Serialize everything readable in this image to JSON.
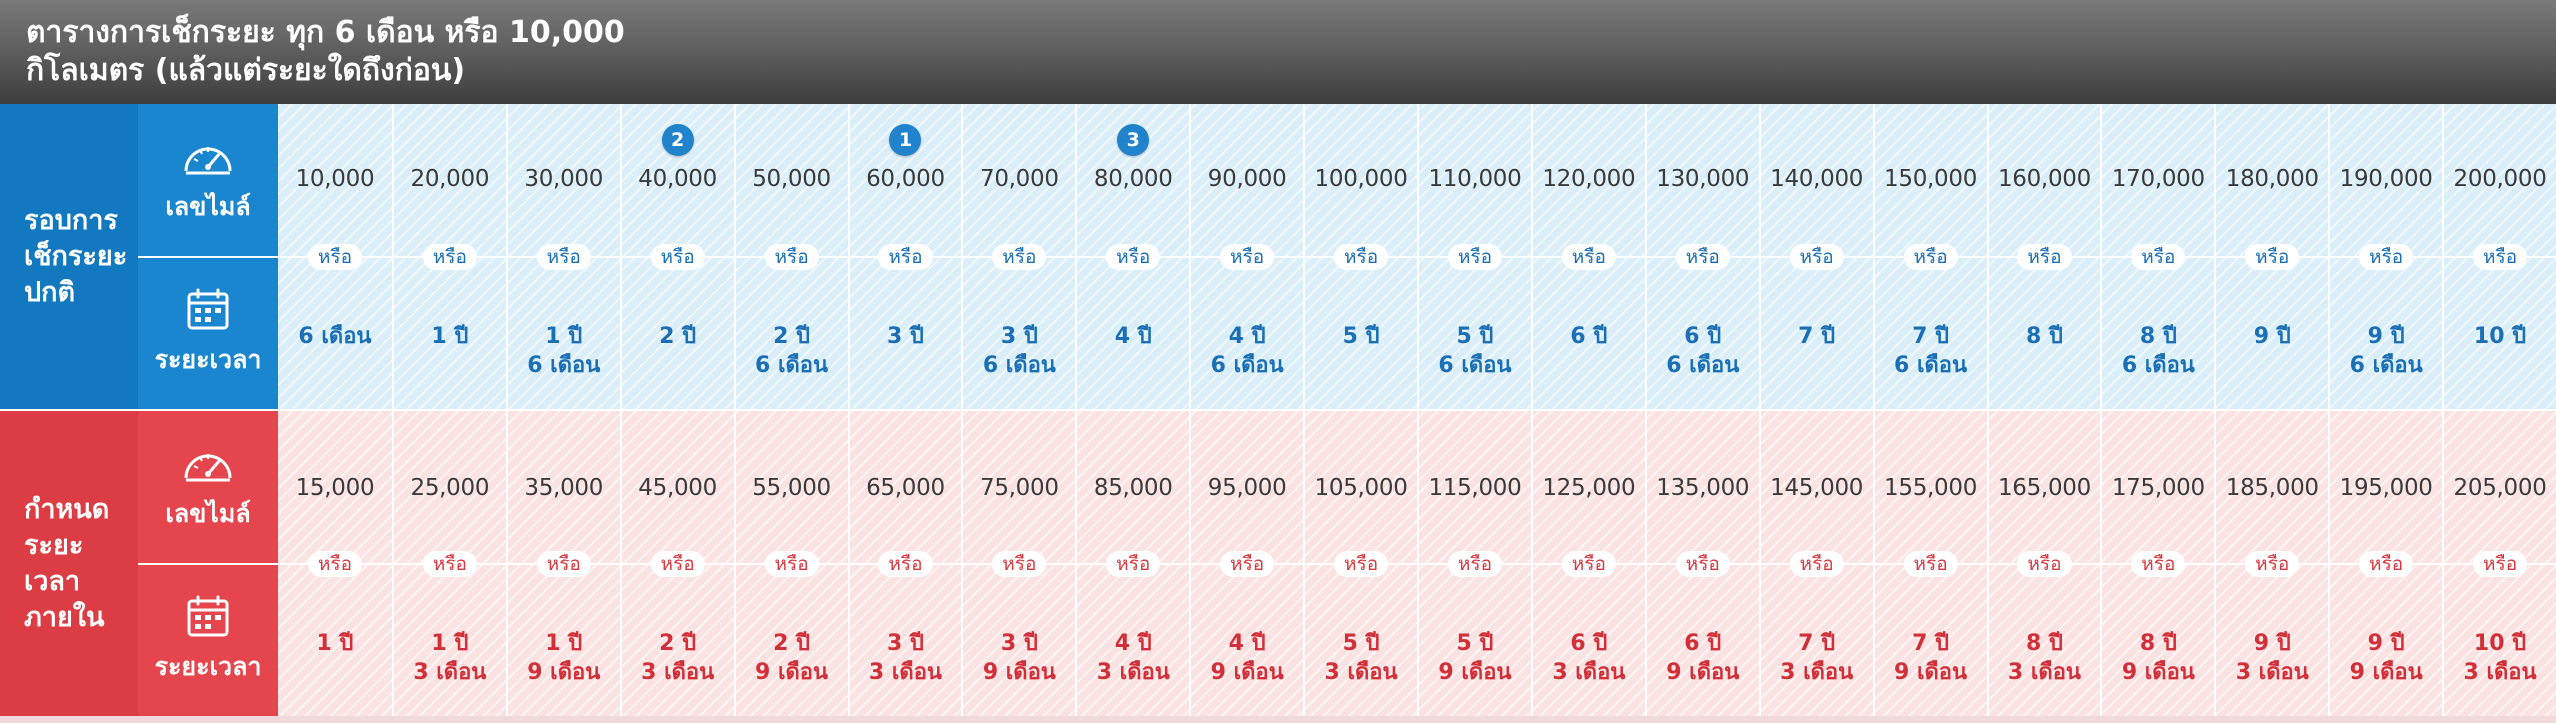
{
  "header": {
    "line1": "ตารางการเช็กระยะ ทุก 6 เดือน หรือ 10,000",
    "line2": "กิโลเมตร (แล้วแต่ระยะใดถึงก่อน)"
  },
  "sub_labels": {
    "mileage": "เลขไมล์",
    "time": "ระยะเวลา"
  },
  "or_label": "หรือ",
  "sections": [
    {
      "id": "normal",
      "label_lines": [
        "รอบการ",
        "เช็กระยะ",
        "ปกติ"
      ],
      "color": "#1278c0",
      "columns": [
        {
          "mileage": "10,000",
          "time": [
            "6 เดือน"
          ],
          "badge": ""
        },
        {
          "mileage": "20,000",
          "time": [
            "1 ปี"
          ],
          "badge": ""
        },
        {
          "mileage": "30,000",
          "time": [
            "1 ปี",
            "6 เดือน"
          ],
          "badge": ""
        },
        {
          "mileage": "40,000",
          "time": [
            "2 ปี"
          ],
          "badge": "2"
        },
        {
          "mileage": "50,000",
          "time": [
            "2 ปี",
            "6 เดือน"
          ],
          "badge": ""
        },
        {
          "mileage": "60,000",
          "time": [
            "3 ปี"
          ],
          "badge": "1"
        },
        {
          "mileage": "70,000",
          "time": [
            "3 ปี",
            "6 เดือน"
          ],
          "badge": ""
        },
        {
          "mileage": "80,000",
          "time": [
            "4 ปี"
          ],
          "badge": "3"
        },
        {
          "mileage": "90,000",
          "time": [
            "4 ปี",
            "6 เดือน"
          ],
          "badge": ""
        },
        {
          "mileage": "100,000",
          "time": [
            "5 ปี"
          ],
          "badge": ""
        },
        {
          "mileage": "110,000",
          "time": [
            "5 ปี",
            "6 เดือน"
          ],
          "badge": ""
        },
        {
          "mileage": "120,000",
          "time": [
            "6 ปี"
          ],
          "badge": ""
        },
        {
          "mileage": "130,000",
          "time": [
            "6 ปี",
            "6 เดือน"
          ],
          "badge": ""
        },
        {
          "mileage": "140,000",
          "time": [
            "7 ปี"
          ],
          "badge": ""
        },
        {
          "mileage": "150,000",
          "time": [
            "7 ปี",
            "6 เดือน"
          ],
          "badge": ""
        },
        {
          "mileage": "160,000",
          "time": [
            "8 ปี"
          ],
          "badge": ""
        },
        {
          "mileage": "170,000",
          "time": [
            "8 ปี",
            "6 เดือน"
          ],
          "badge": ""
        },
        {
          "mileage": "180,000",
          "time": [
            "9 ปี"
          ],
          "badge": ""
        },
        {
          "mileage": "190,000",
          "time": [
            "9 ปี",
            "6 เดือน"
          ],
          "badge": ""
        },
        {
          "mileage": "200,000",
          "time": [
            "10 ปี"
          ],
          "badge": ""
        }
      ]
    },
    {
      "id": "deadline",
      "label_lines": [
        "กำหนด",
        "ระยะเวลา",
        "ภายใน"
      ],
      "color": "#dc3c43",
      "columns": [
        {
          "mileage": "15,000",
          "time": [
            "1 ปี"
          ]
        },
        {
          "mileage": "25,000",
          "time": [
            "1 ปี",
            "3 เดือน"
          ]
        },
        {
          "mileage": "35,000",
          "time": [
            "1 ปี",
            "9 เดือน"
          ]
        },
        {
          "mileage": "45,000",
          "time": [
            "2 ปี",
            "3 เดือน"
          ]
        },
        {
          "mileage": "55,000",
          "time": [
            "2 ปี",
            "9 เดือน"
          ]
        },
        {
          "mileage": "65,000",
          "time": [
            "3 ปี",
            "3 เดือน"
          ]
        },
        {
          "mileage": "75,000",
          "time": [
            "3 ปี",
            "9 เดือน"
          ]
        },
        {
          "mileage": "85,000",
          "time": [
            "4 ปี",
            "3 เดือน"
          ]
        },
        {
          "mileage": "95,000",
          "time": [
            "4 ปี",
            "9 เดือน"
          ]
        },
        {
          "mileage": "105,000",
          "time": [
            "5 ปี",
            "3 เดือน"
          ]
        },
        {
          "mileage": "115,000",
          "time": [
            "5 ปี",
            "9 เดือน"
          ]
        },
        {
          "mileage": "125,000",
          "time": [
            "6 ปี",
            "3 เดือน"
          ]
        },
        {
          "mileage": "135,000",
          "time": [
            "6 ปี",
            "9 เดือน"
          ]
        },
        {
          "mileage": "145,000",
          "time": [
            "7 ปี",
            "3 เดือน"
          ]
        },
        {
          "mileage": "155,000",
          "time": [
            "7 ปี",
            "9 เดือน"
          ]
        },
        {
          "mileage": "165,000",
          "time": [
            "8 ปี",
            "3 เดือน"
          ]
        },
        {
          "mileage": "175,000",
          "time": [
            "8 ปี",
            "9 เดือน"
          ]
        },
        {
          "mileage": "185,000",
          "time": [
            "9 ปี",
            "3 เดือน"
          ]
        },
        {
          "mileage": "195,000",
          "time": [
            "9 ปี",
            "9 เดือน"
          ]
        },
        {
          "mileage": "205,000",
          "time": [
            "10 ปี",
            "3 เดือน"
          ]
        }
      ]
    }
  ],
  "icons": {
    "mileage": "speedometer-icon",
    "time": "calendar-icon"
  }
}
